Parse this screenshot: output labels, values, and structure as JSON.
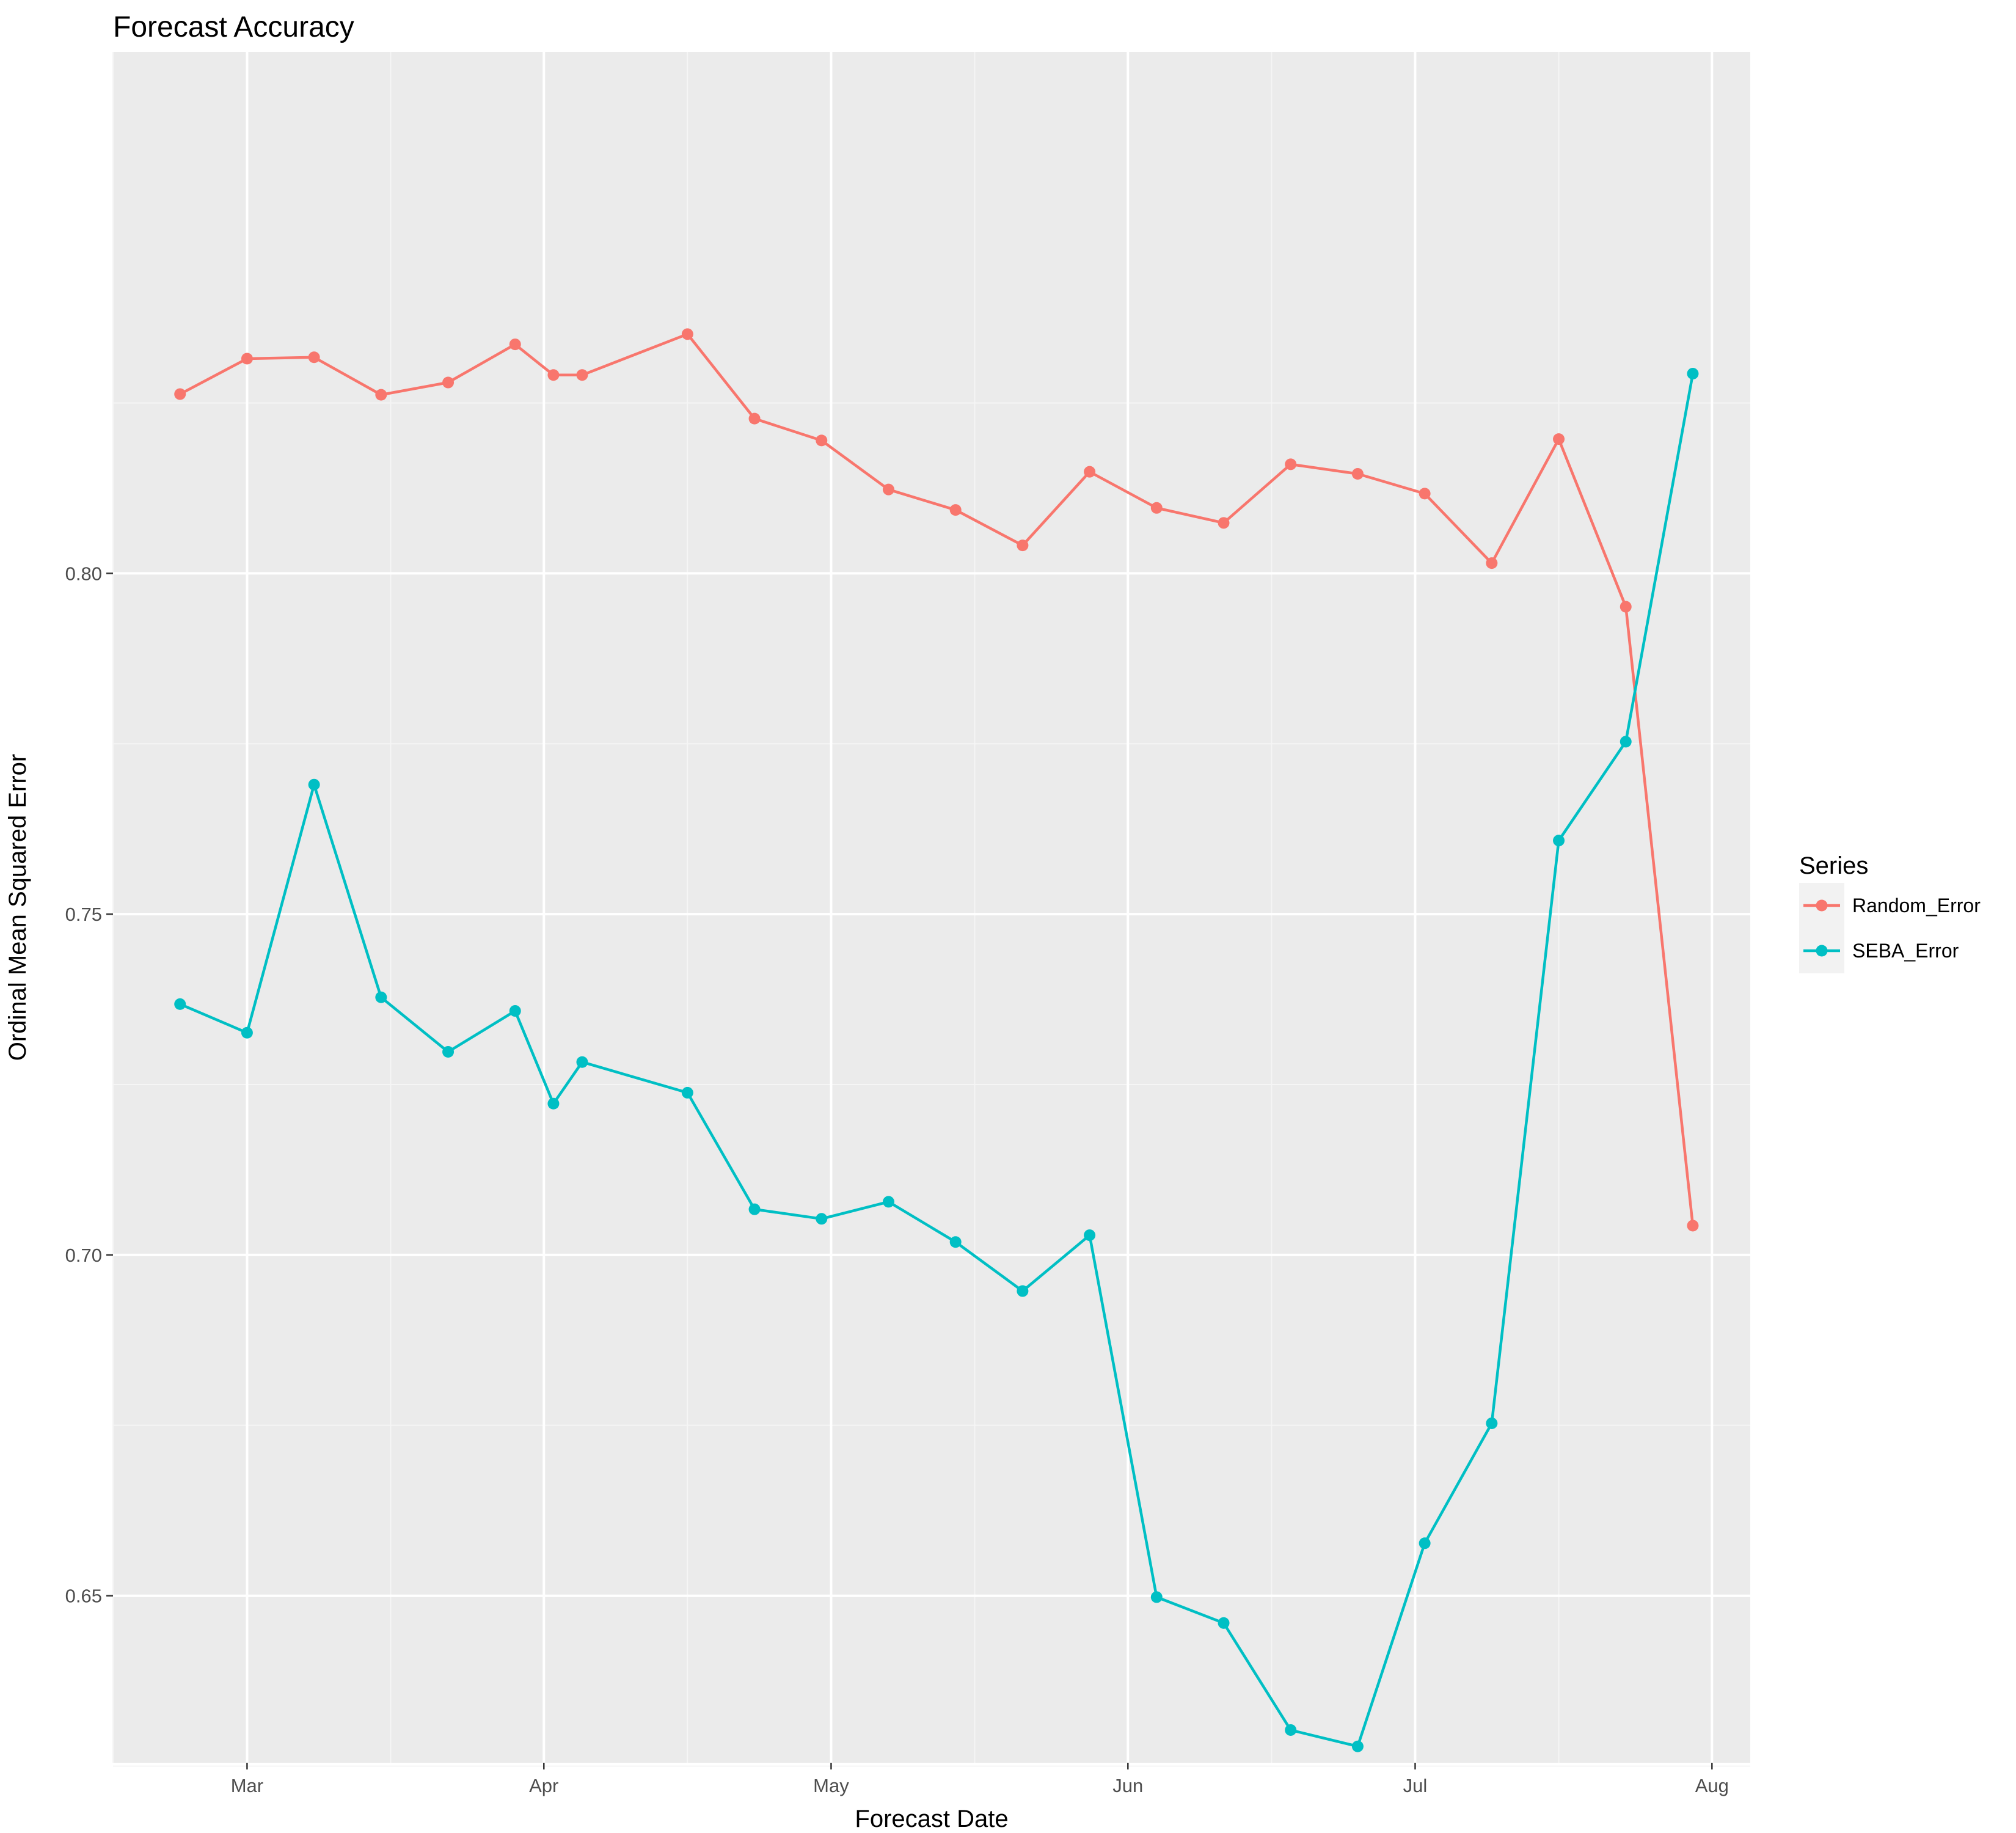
{
  "chart_data": {
    "type": "line",
    "title": "Forecast Accuracy",
    "xlabel": "Forecast Date",
    "ylabel": "Ordinal Mean Squared Error",
    "x_axis_type": "date",
    "xlim": [
      "2017-02-15",
      "2017-08-05"
    ],
    "ylim": [
      0.6255,
      0.8765
    ],
    "x_ticks": [
      {
        "date": "2017-03-01",
        "label": "Mar"
      },
      {
        "date": "2017-04-01",
        "label": "Apr"
      },
      {
        "date": "2017-05-01",
        "label": "May"
      },
      {
        "date": "2017-06-01",
        "label": "Jun"
      },
      {
        "date": "2017-07-01",
        "label": "Jul"
      },
      {
        "date": "2017-08-01",
        "label": "Aug"
      }
    ],
    "x_minor_ticks": [
      "2017-02-15",
      "2017-03-16",
      "2017-04-16",
      "2017-05-16",
      "2017-06-16",
      "2017-07-16"
    ],
    "y_ticks": [
      {
        "value": 0.65,
        "label": "0.65"
      },
      {
        "value": 0.7,
        "label": "0.70"
      },
      {
        "value": 0.75,
        "label": "0.75"
      },
      {
        "value": 0.8,
        "label": "0.80"
      }
    ],
    "y_minor_ticks": [
      0.625,
      0.675,
      0.725,
      0.775,
      0.825
    ],
    "grid": true,
    "legend": {
      "title": "Series",
      "position": "right"
    },
    "series": [
      {
        "name": "Random_Error",
        "color": "#F8766D",
        "points": [
          {
            "x": "2017-02-22",
            "y": 0.8263
          },
          {
            "x": "2017-03-01",
            "y": 0.8315
          },
          {
            "x": "2017-03-08",
            "y": 0.8317
          },
          {
            "x": "2017-03-15",
            "y": 0.8262
          },
          {
            "x": "2017-03-22",
            "y": 0.828
          },
          {
            "x": "2017-03-29",
            "y": 0.8336
          },
          {
            "x": "2017-04-02",
            "y": 0.8291
          },
          {
            "x": "2017-04-05",
            "y": 0.8291
          },
          {
            "x": "2017-04-16",
            "y": 0.8351
          },
          {
            "x": "2017-04-23",
            "y": 0.8227
          },
          {
            "x": "2017-04-30",
            "y": 0.8195
          },
          {
            "x": "2017-05-07",
            "y": 0.8123
          },
          {
            "x": "2017-05-14",
            "y": 0.8093
          },
          {
            "x": "2017-05-21",
            "y": 0.8041
          },
          {
            "x": "2017-05-28",
            "y": 0.8149
          },
          {
            "x": "2017-06-04",
            "y": 0.8096
          },
          {
            "x": "2017-06-11",
            "y": 0.8074
          },
          {
            "x": "2017-06-18",
            "y": 0.816
          },
          {
            "x": "2017-06-25",
            "y": 0.8146
          },
          {
            "x": "2017-07-02",
            "y": 0.8117
          },
          {
            "x": "2017-07-09",
            "y": 0.8015
          },
          {
            "x": "2017-07-16",
            "y": 0.8197
          },
          {
            "x": "2017-07-23",
            "y": 0.7951
          },
          {
            "x": "2017-07-30",
            "y": 0.7043
          }
        ]
      },
      {
        "name": "SEBA_Error",
        "color": "#00BFC4",
        "points": [
          {
            "x": "2017-02-22",
            "y": 0.7368
          },
          {
            "x": "2017-03-01",
            "y": 0.7326
          },
          {
            "x": "2017-03-08",
            "y": 0.769
          },
          {
            "x": "2017-03-15",
            "y": 0.7378
          },
          {
            "x": "2017-03-22",
            "y": 0.7298
          },
          {
            "x": "2017-03-29",
            "y": 0.7358
          },
          {
            "x": "2017-04-02",
            "y": 0.7222
          },
          {
            "x": "2017-04-05",
            "y": 0.7283
          },
          {
            "x": "2017-04-16",
            "y": 0.7238
          },
          {
            "x": "2017-04-23",
            "y": 0.7067
          },
          {
            "x": "2017-04-30",
            "y": 0.7053
          },
          {
            "x": "2017-05-07",
            "y": 0.7078
          },
          {
            "x": "2017-05-14",
            "y": 0.7019
          },
          {
            "x": "2017-05-21",
            "y": 0.6947
          },
          {
            "x": "2017-05-28",
            "y": 0.7029
          },
          {
            "x": "2017-06-04",
            "y": 0.6498
          },
          {
            "x": "2017-06-11",
            "y": 0.646
          },
          {
            "x": "2017-06-18",
            "y": 0.6303
          },
          {
            "x": "2017-06-25",
            "y": 0.6279
          },
          {
            "x": "2017-07-02",
            "y": 0.6577
          },
          {
            "x": "2017-07-09",
            "y": 0.6753
          },
          {
            "x": "2017-07-16",
            "y": 0.7608
          },
          {
            "x": "2017-07-23",
            "y": 0.7753
          },
          {
            "x": "2017-07-30",
            "y": 0.8293
          }
        ]
      }
    ]
  }
}
